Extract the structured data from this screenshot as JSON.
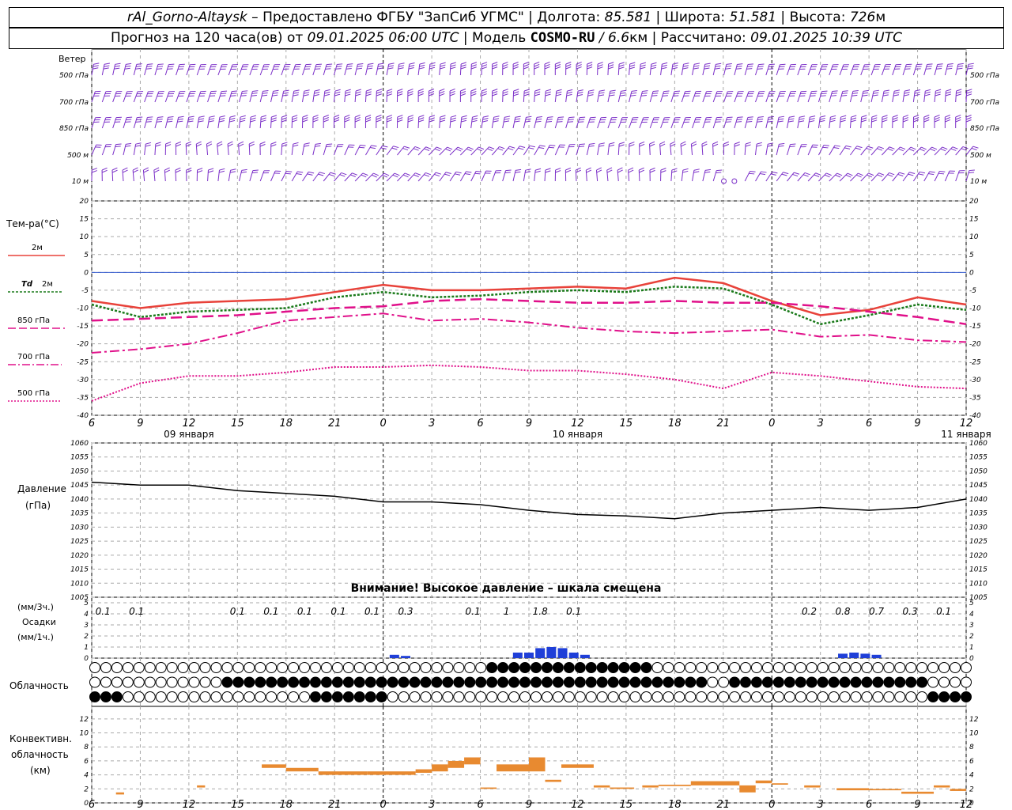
{
  "header": {
    "station": "rAl_Gorno-Altaysk",
    "sep1": " – Предоставлено ФГБУ \"ЗапСиб УГМС\" | Долгота: ",
    "lon": "85.581",
    "sep2": " | Широта: ",
    "lat": "51.581",
    "sep3": " | Высота: ",
    "alt": "726",
    "alt_unit": "м",
    "fc_label": "Прогноз на 120 часа(ов) от ",
    "fc_time": "09.01.2025 06:00 UTC",
    "model_label": "| Модель ",
    "model": "COSMO-RU",
    "res": " / 6.6",
    "res_unit": "км",
    "calc_label": " | Рассчитано: ",
    "calc_time": "09.01.2025 10:39 UTC"
  },
  "colors": {
    "t2m": "#e8423a",
    "td2m": "#1a7a1a",
    "t850": "#e0108a",
    "t700": "#e0108a",
    "t500": "#e0108a",
    "wind": "#7b2fc8",
    "pressure": "#000000",
    "precip": "#1f3fd8",
    "convective": "#e88a30",
    "zero_line": "#3a5fd0"
  },
  "labels": {
    "wind": "Ветер",
    "levels": [
      "500 гПа",
      "700 гПа",
      "850 гПа",
      "500 м",
      "10 м"
    ],
    "temp_title": "Тем-ра(°C)",
    "t2m": "2м",
    "td_a": "Td",
    "td_b": "2м",
    "t850": "850 гПа",
    "t700": "700 гПа",
    "t500": "500 гПа",
    "pressure_a": "Давление",
    "pressure_b": "(гПа)",
    "warning": "Внимание! Высокое давление – шкала смещена",
    "precip_a": "(мм/3ч.)",
    "precip_b": "Осадки",
    "precip_c": "(мм/1ч.)",
    "clouds": "Облачность",
    "conv_a": "Конвективн.",
    "conv_b": "облачность",
    "conv_c": "(км)"
  },
  "chart_data": {
    "type": "line",
    "x_hours_from_start": "0..54",
    "x_tick_labels": [
      "6",
      "9",
      "12",
      "15",
      "18",
      "21",
      "0",
      "3",
      "6",
      "9",
      "12",
      "15",
      "18",
      "21",
      "0",
      "3",
      "6",
      "9",
      "12"
    ],
    "date_labels": [
      "09 января",
      "10 января",
      "11 января"
    ],
    "temperature": {
      "ylim": [
        -40,
        20
      ],
      "yticks": [
        20,
        15,
        10,
        5,
        0,
        -5,
        -10,
        -15,
        -20,
        -25,
        -30,
        -35,
        -40
      ],
      "series": [
        {
          "name": "2м",
          "x": [
            0,
            3,
            6,
            9,
            12,
            15,
            18,
            21,
            24,
            27,
            30,
            33,
            36,
            39,
            42,
            45,
            48,
            51,
            54
          ],
          "values": [
            -8,
            -10,
            -8.5,
            -8,
            -7.5,
            -5.5,
            -3.5,
            -5,
            -5,
            -4.5,
            -4,
            -4.5,
            -1.5,
            -3,
            -8,
            -12,
            -10.5,
            -7,
            -9
          ]
        },
        {
          "name": "Td 2м",
          "x": [
            0,
            3,
            6,
            9,
            12,
            15,
            18,
            21,
            24,
            27,
            30,
            33,
            36,
            39,
            42,
            45,
            48,
            51,
            54
          ],
          "values": [
            -9,
            -12.5,
            -11,
            -10.5,
            -10,
            -7,
            -5.5,
            -7,
            -6.5,
            -5.5,
            -5,
            -5.5,
            -4,
            -4.5,
            -9,
            -14.5,
            -12,
            -9,
            -10.5
          ]
        },
        {
          "name": "850 гПа",
          "x": [
            0,
            3,
            6,
            9,
            12,
            15,
            18,
            21,
            24,
            27,
            30,
            33,
            36,
            39,
            42,
            45,
            48,
            51,
            54
          ],
          "values": [
            -13.5,
            -13,
            -12.5,
            -12,
            -11,
            -10,
            -9.5,
            -8,
            -7.5,
            -8,
            -8.5,
            -8.5,
            -8,
            -8.5,
            -8.5,
            -9.5,
            -11,
            -12.5,
            -14.5
          ]
        },
        {
          "name": "700 гПа",
          "x": [
            0,
            3,
            6,
            9,
            12,
            15,
            18,
            21,
            24,
            27,
            30,
            33,
            36,
            39,
            42,
            45,
            48,
            51,
            54
          ],
          "values": [
            -22.5,
            -21.5,
            -20,
            -17,
            -13.5,
            -12.5,
            -11.5,
            -13.5,
            -13,
            -14,
            -15.5,
            -16.5,
            -17,
            -16.5,
            -16,
            -18,
            -17.5,
            -19,
            -19.5
          ]
        },
        {
          "name": "500 гПа",
          "x": [
            0,
            3,
            6,
            9,
            12,
            15,
            18,
            21,
            24,
            27,
            30,
            33,
            36,
            39,
            42,
            45,
            48,
            51,
            54
          ],
          "values": [
            -36,
            -31,
            -29,
            -29,
            -28,
            -26.5,
            -26.5,
            -26,
            -26.5,
            -27.5,
            -27.5,
            -28.5,
            -30,
            -32.5,
            -28,
            -29,
            -30.5,
            -32,
            -32.5
          ]
        }
      ]
    },
    "pressure": {
      "ylim": [
        1005,
        1060
      ],
      "yticks": [
        1060,
        1055,
        1050,
        1045,
        1040,
        1035,
        1030,
        1025,
        1020,
        1015,
        1010,
        1005
      ],
      "x": [
        0,
        3,
        6,
        9,
        12,
        15,
        18,
        21,
        24,
        27,
        30,
        33,
        36,
        39,
        42,
        45,
        48,
        51,
        54
      ],
      "values": [
        1046,
        1045,
        1045,
        1043,
        1042,
        1041,
        1039,
        1039,
        1038,
        1036,
        1034.5,
        1034,
        1033,
        1035,
        1036,
        1037,
        1036,
        1037,
        1040
      ]
    },
    "precip_labels": [
      {
        "x": 1,
        "text": "0.1"
      },
      {
        "x": 4,
        "text": "0.1"
      },
      {
        "x": 13,
        "text": "0.1"
      },
      {
        "x": 16,
        "text": "0.1"
      },
      {
        "x": 19,
        "text": "0.1"
      },
      {
        "x": 22,
        "text": "0.1"
      },
      {
        "x": 25,
        "text": "0.1"
      },
      {
        "x": 28,
        "text": "0.3"
      },
      {
        "x": 34,
        "text": "0.1"
      },
      {
        "x": 37,
        "text": "1"
      },
      {
        "x": 40,
        "text": "1.8"
      },
      {
        "x": 43,
        "text": "0.1"
      },
      {
        "x": 64,
        "text": "0.2"
      },
      {
        "x": 67,
        "text": "0.8"
      },
      {
        "x": 70,
        "text": "0.7"
      },
      {
        "x": 73,
        "text": "0.3"
      },
      {
        "x": 76,
        "text": "0.1"
      }
    ],
    "precip": {
      "ylim": [
        0,
        5
      ],
      "yticks": [
        5,
        4,
        3,
        2,
        1,
        0
      ]
    },
    "convective": {
      "ylim": [
        0,
        13
      ],
      "yticks": [
        12,
        10,
        8,
        6,
        4,
        2,
        0
      ]
    }
  }
}
